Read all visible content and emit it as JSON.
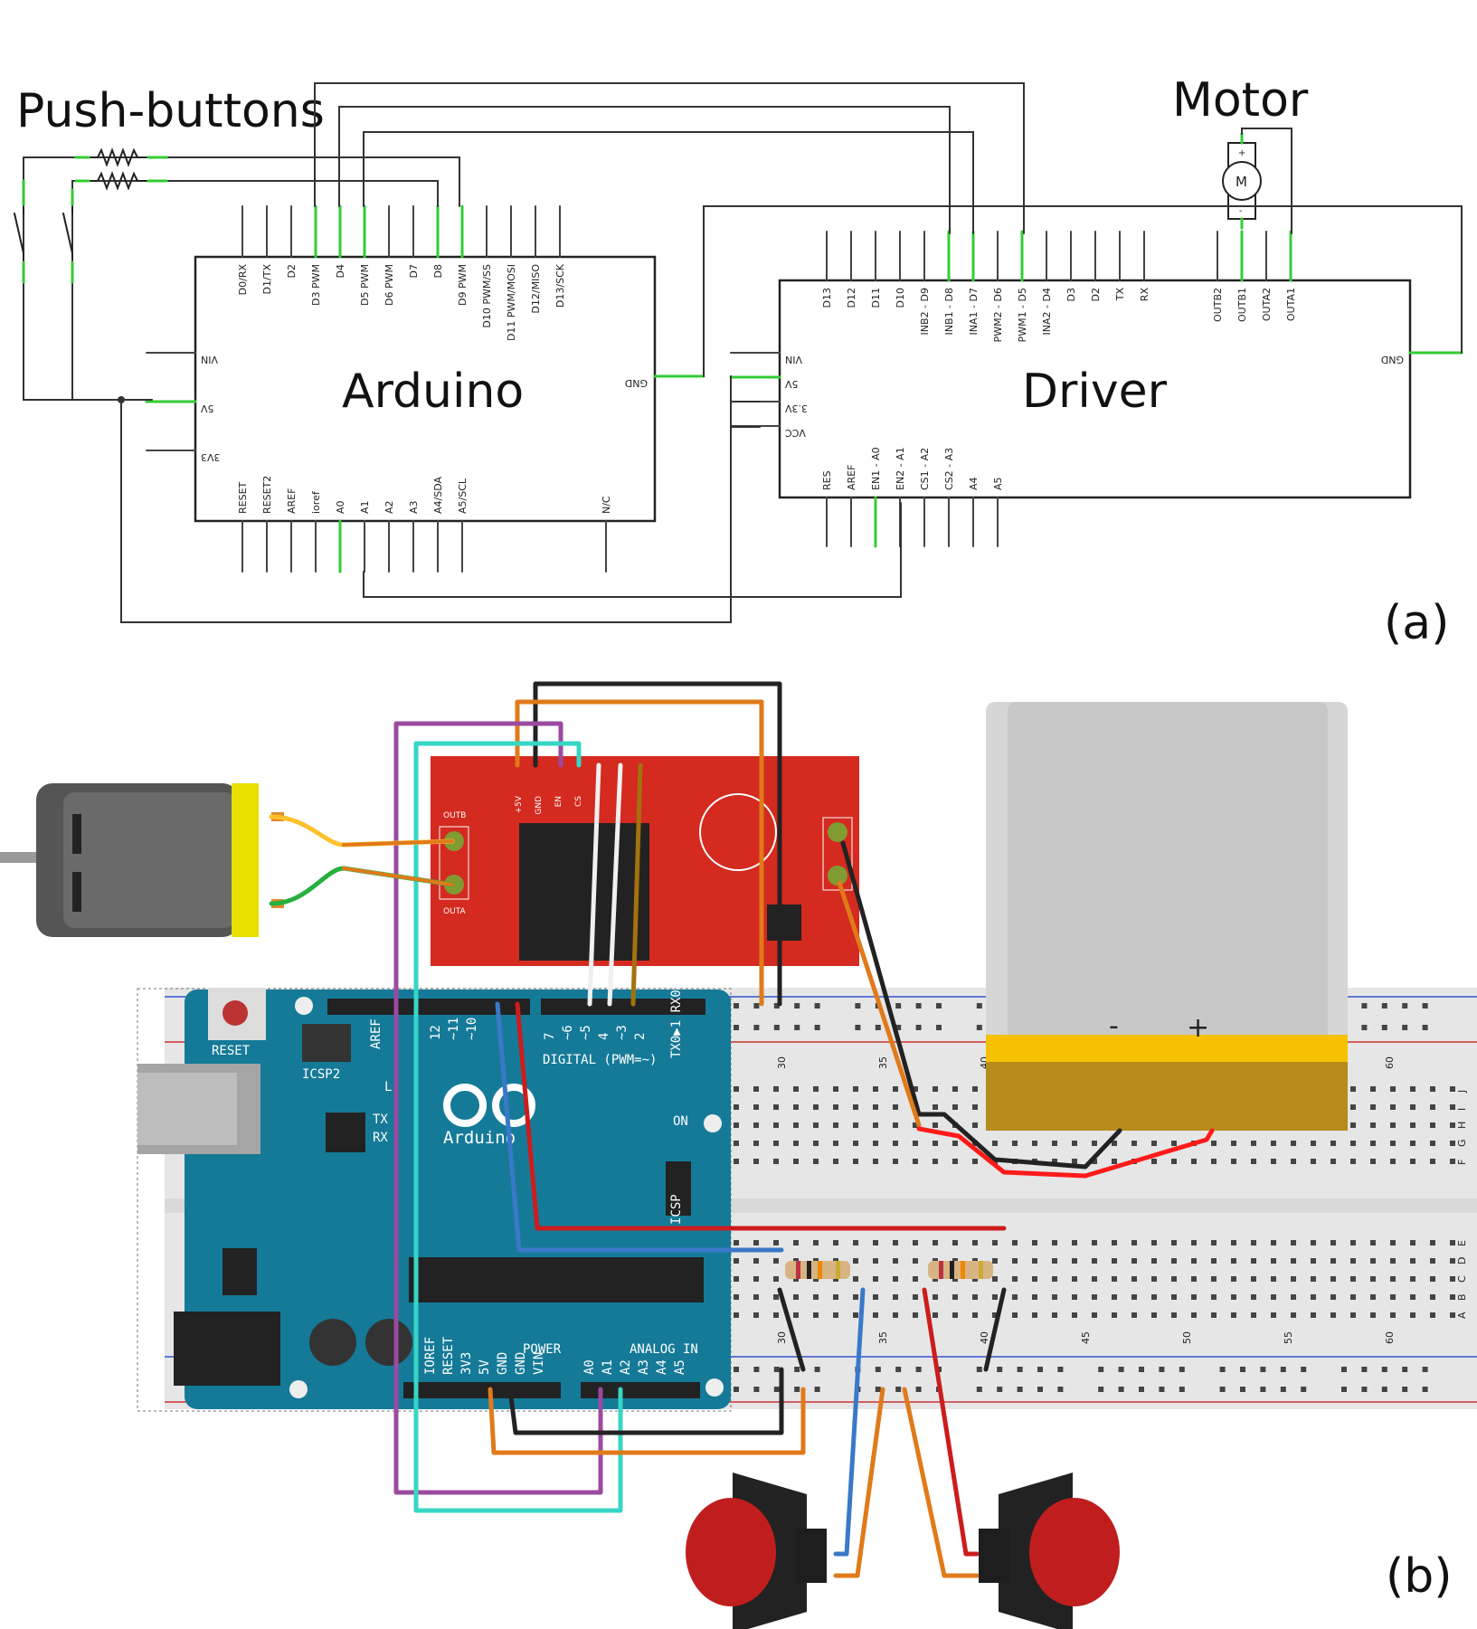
{
  "schematic": {
    "labels": {
      "push_buttons": "Push-buttons",
      "motor": "Motor",
      "arduino": "Arduino",
      "driver": "Driver",
      "panel": "(a)",
      "motor_symbol": "M",
      "plus": "+",
      "minus": "-"
    },
    "arduino_top_pins": [
      "D0/RX",
      "D1/TX",
      "D2",
      "D3 PWM",
      "D4",
      "D5 PWM",
      "D6 PWM",
      "D7",
      "D8",
      "D9 PWM",
      "D10 PWM/SS",
      "D11 PWM/MOSI",
      "D12/MISO",
      "D13/SCK"
    ],
    "arduino_left_pins": [
      "VIN",
      "5V",
      "3V3"
    ],
    "arduino_right_pins": [
      "GND"
    ],
    "arduino_bottom_pins": [
      "RESET",
      "RESET2",
      "AREF",
      "ioref",
      "A0",
      "A1",
      "A2",
      "A3",
      "A4/SDA",
      "A5/SCL",
      "N/C"
    ],
    "driver_top_pins": [
      "D13",
      "D12",
      "D11",
      "D10",
      "INB2 - D9",
      "INB1 - D8",
      "INA1 - D7",
      "PWM2 - D6",
      "PWM1 - D5",
      "INA2 - D4",
      "D3",
      "D2",
      "TX",
      "RX"
    ],
    "driver_top_right_pins": [
      "OUTB2",
      "OUTB1",
      "OUTA2",
      "OUTA1"
    ],
    "driver_left_pins": [
      "VIN",
      "5V",
      "3.3V",
      "VCC"
    ],
    "driver_right_pins": [
      "GND"
    ],
    "driver_bottom_pins": [
      "RES",
      "AREF",
      "EN1 - A0",
      "EN2 - A1",
      "CS1 - A2",
      "CS2 - A3",
      "A4",
      "A5"
    ]
  },
  "breadboard": {
    "panel": "(b)",
    "arduino_logo": "Arduino",
    "reset": "RESET",
    "icsp2": "ICSP2",
    "icsp": "ICSP",
    "on": "ON",
    "tx": "TX",
    "rx": "RX",
    "l": "L",
    "aref": "AREF",
    "digital": "DIGITAL (PWM=~)",
    "txrx": "TX0▶1  RX0◀0",
    "digital_pins": [
      "12",
      "~11",
      "~10",
      "7",
      "~6",
      "~5",
      "4",
      "~3",
      "2"
    ],
    "power": "POWER",
    "analog_in": "ANALOG IN",
    "power_pins": [
      "IOREF",
      "RESET",
      "3V3",
      "5V",
      "GND",
      "GND",
      "VIN"
    ],
    "analog_pins": [
      "A0",
      "A1",
      "A2",
      "A3",
      "A4",
      "A5"
    ],
    "driver_pins": [
      "+5V",
      "GND",
      "EN",
      "CS"
    ],
    "driver_outb": "OUTB",
    "driver_outa": "OUTA",
    "battery_minus": "-",
    "battery_plus": "+",
    "bb_numbers": [
      "30",
      "35",
      "40",
      "45",
      "50",
      "55",
      "60"
    ],
    "bb_letters_top": [
      "J",
      "I",
      "H",
      "G",
      "F"
    ],
    "bb_letters_bottom": [
      "E",
      "D",
      "C",
      "B",
      "A"
    ]
  }
}
